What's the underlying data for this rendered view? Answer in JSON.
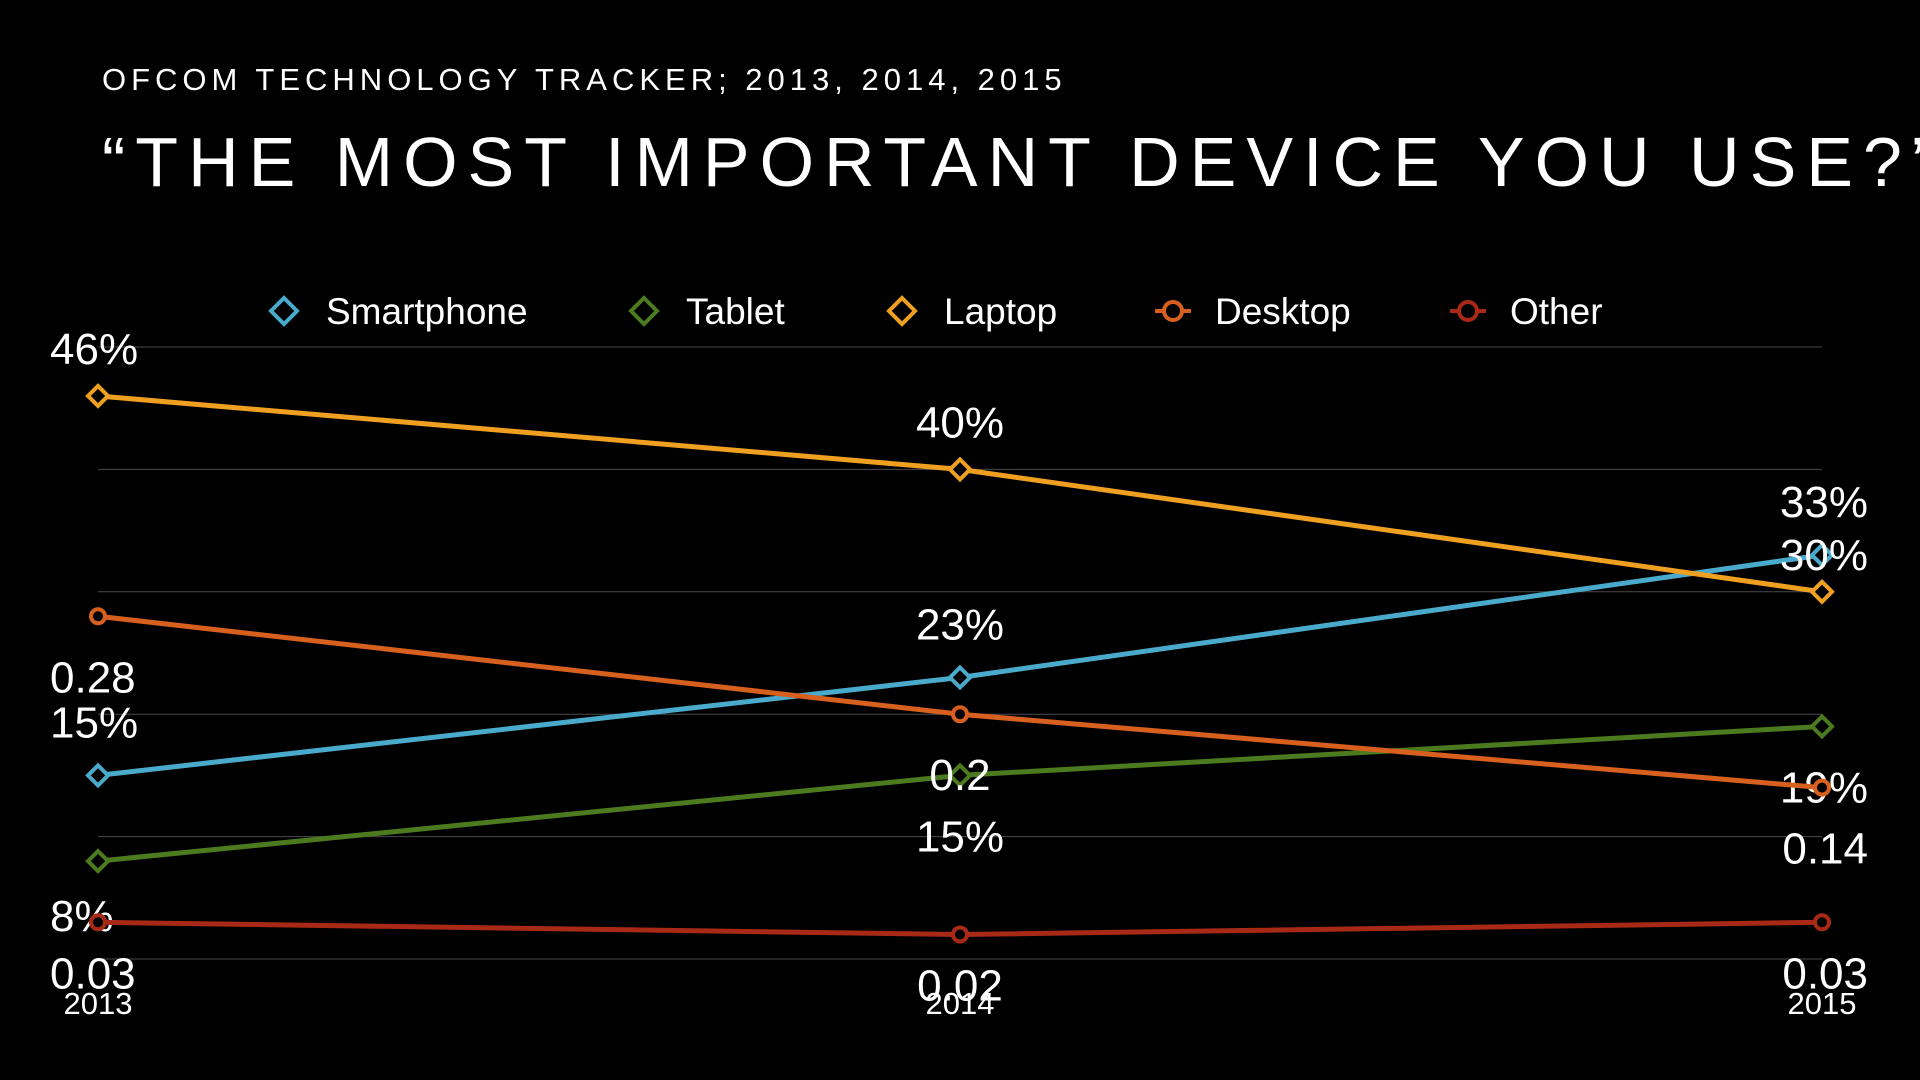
{
  "header": {
    "subtitle": "OFCOM TECHNOLOGY TRACKER; 2013, 2014, 2015",
    "title": "“THE MOST IMPORTANT DEVICE YOU USE?”"
  },
  "chart_data": {
    "type": "line",
    "title": "“THE MOST IMPORTANT DEVICE YOU USE?”",
    "subtitle": "OFCOM TECHNOLOGY TRACKER; 2013, 2014, 2015",
    "categories": [
      "2013",
      "2014",
      "2015"
    ],
    "ylim": [
      0,
      0.5
    ],
    "grid": true,
    "legend_position": "top",
    "series": [
      {
        "name": "Smartphone",
        "values": [
          0.15,
          0.23,
          0.33
        ],
        "labels": [
          "15%",
          "23%",
          "33%"
        ],
        "color": "#4aaacc",
        "marker": "diamond"
      },
      {
        "name": "Tablet",
        "values": [
          0.08,
          0.15,
          0.19
        ],
        "labels": [
          "8%",
          "15%",
          "19%"
        ],
        "color": "#4c7a1e",
        "marker": "diamond"
      },
      {
        "name": "Laptop",
        "values": [
          0.46,
          0.4,
          0.3
        ],
        "labels": [
          "46%",
          "40%",
          "30%"
        ],
        "color": "#f0a020",
        "marker": "diamond"
      },
      {
        "name": "Desktop",
        "values": [
          0.28,
          0.2,
          0.14
        ],
        "labels": [
          "0.28",
          "0.2",
          "0.14"
        ],
        "color": "#d8601e",
        "marker": "circle"
      },
      {
        "name": "Other",
        "values": [
          0.03,
          0.02,
          0.03
        ],
        "labels": [
          "0.03",
          "0.02",
          "0.03"
        ],
        "color": "#a82a16",
        "marker": "circle"
      }
    ]
  }
}
